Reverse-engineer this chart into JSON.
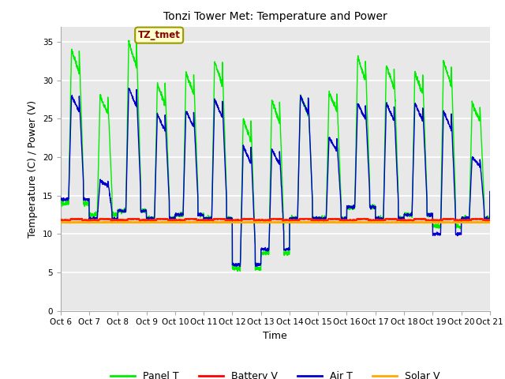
{
  "title": "Tonzi Tower Met: Temperature and Power",
  "xlabel": "Time",
  "ylabel": "Temperature (C) / Power (V)",
  "ylim": [
    0,
    37
  ],
  "yticks": [
    0,
    5,
    10,
    15,
    20,
    25,
    30,
    35
  ],
  "x_tick_labels": [
    "Oct 6",
    "Oct 7",
    "Oct 8",
    "Oct 9",
    "Oct 10",
    "Oct 11",
    "Oct 12",
    "Oct 13",
    "Oct 14",
    "Oct 15",
    "Oct 16",
    "Oct 17",
    "Oct 18",
    "Oct 19",
    "Oct 20",
    "Oct 21"
  ],
  "annotation_text": "TZ_tmet",
  "legend_labels": [
    "Panel T",
    "Battery V",
    "Air T",
    "Solar V"
  ],
  "legend_colors": [
    "#00ee00",
    "#ff0000",
    "#0000cc",
    "#ffaa00"
  ],
  "panel_color": "#00ee00",
  "battery_color": "#ff2200",
  "air_color": "#0000cc",
  "solar_color": "#ffaa00",
  "plot_bg": "#e8e8e8",
  "grid_color": "#ffffff",
  "battery_level": 11.8,
  "solar_level": 11.5,
  "panel_peaks": [
    34.0,
    28.0,
    35.0,
    29.5,
    31.0,
    32.5,
    25.0,
    27.5,
    28.0,
    28.5,
    33.0,
    32.0,
    31.0,
    32.5,
    27.0,
    26.5
  ],
  "panel_mins": [
    14.0,
    12.5,
    13.0,
    12.0,
    12.5,
    12.0,
    5.5,
    7.5,
    12.0,
    12.0,
    13.5,
    12.0,
    12.5,
    11.0,
    12.0,
    15.0
  ],
  "air_peaks": [
    28.0,
    17.0,
    29.0,
    25.5,
    26.0,
    27.5,
    21.5,
    21.0,
    28.0,
    22.5,
    27.0,
    27.0,
    27.0,
    26.0,
    20.0,
    16.0
  ],
  "air_mins": [
    14.5,
    12.0,
    13.0,
    12.0,
    12.5,
    12.0,
    6.0,
    8.0,
    12.0,
    12.0,
    13.5,
    12.0,
    12.5,
    10.0,
    12.0,
    15.5
  ]
}
